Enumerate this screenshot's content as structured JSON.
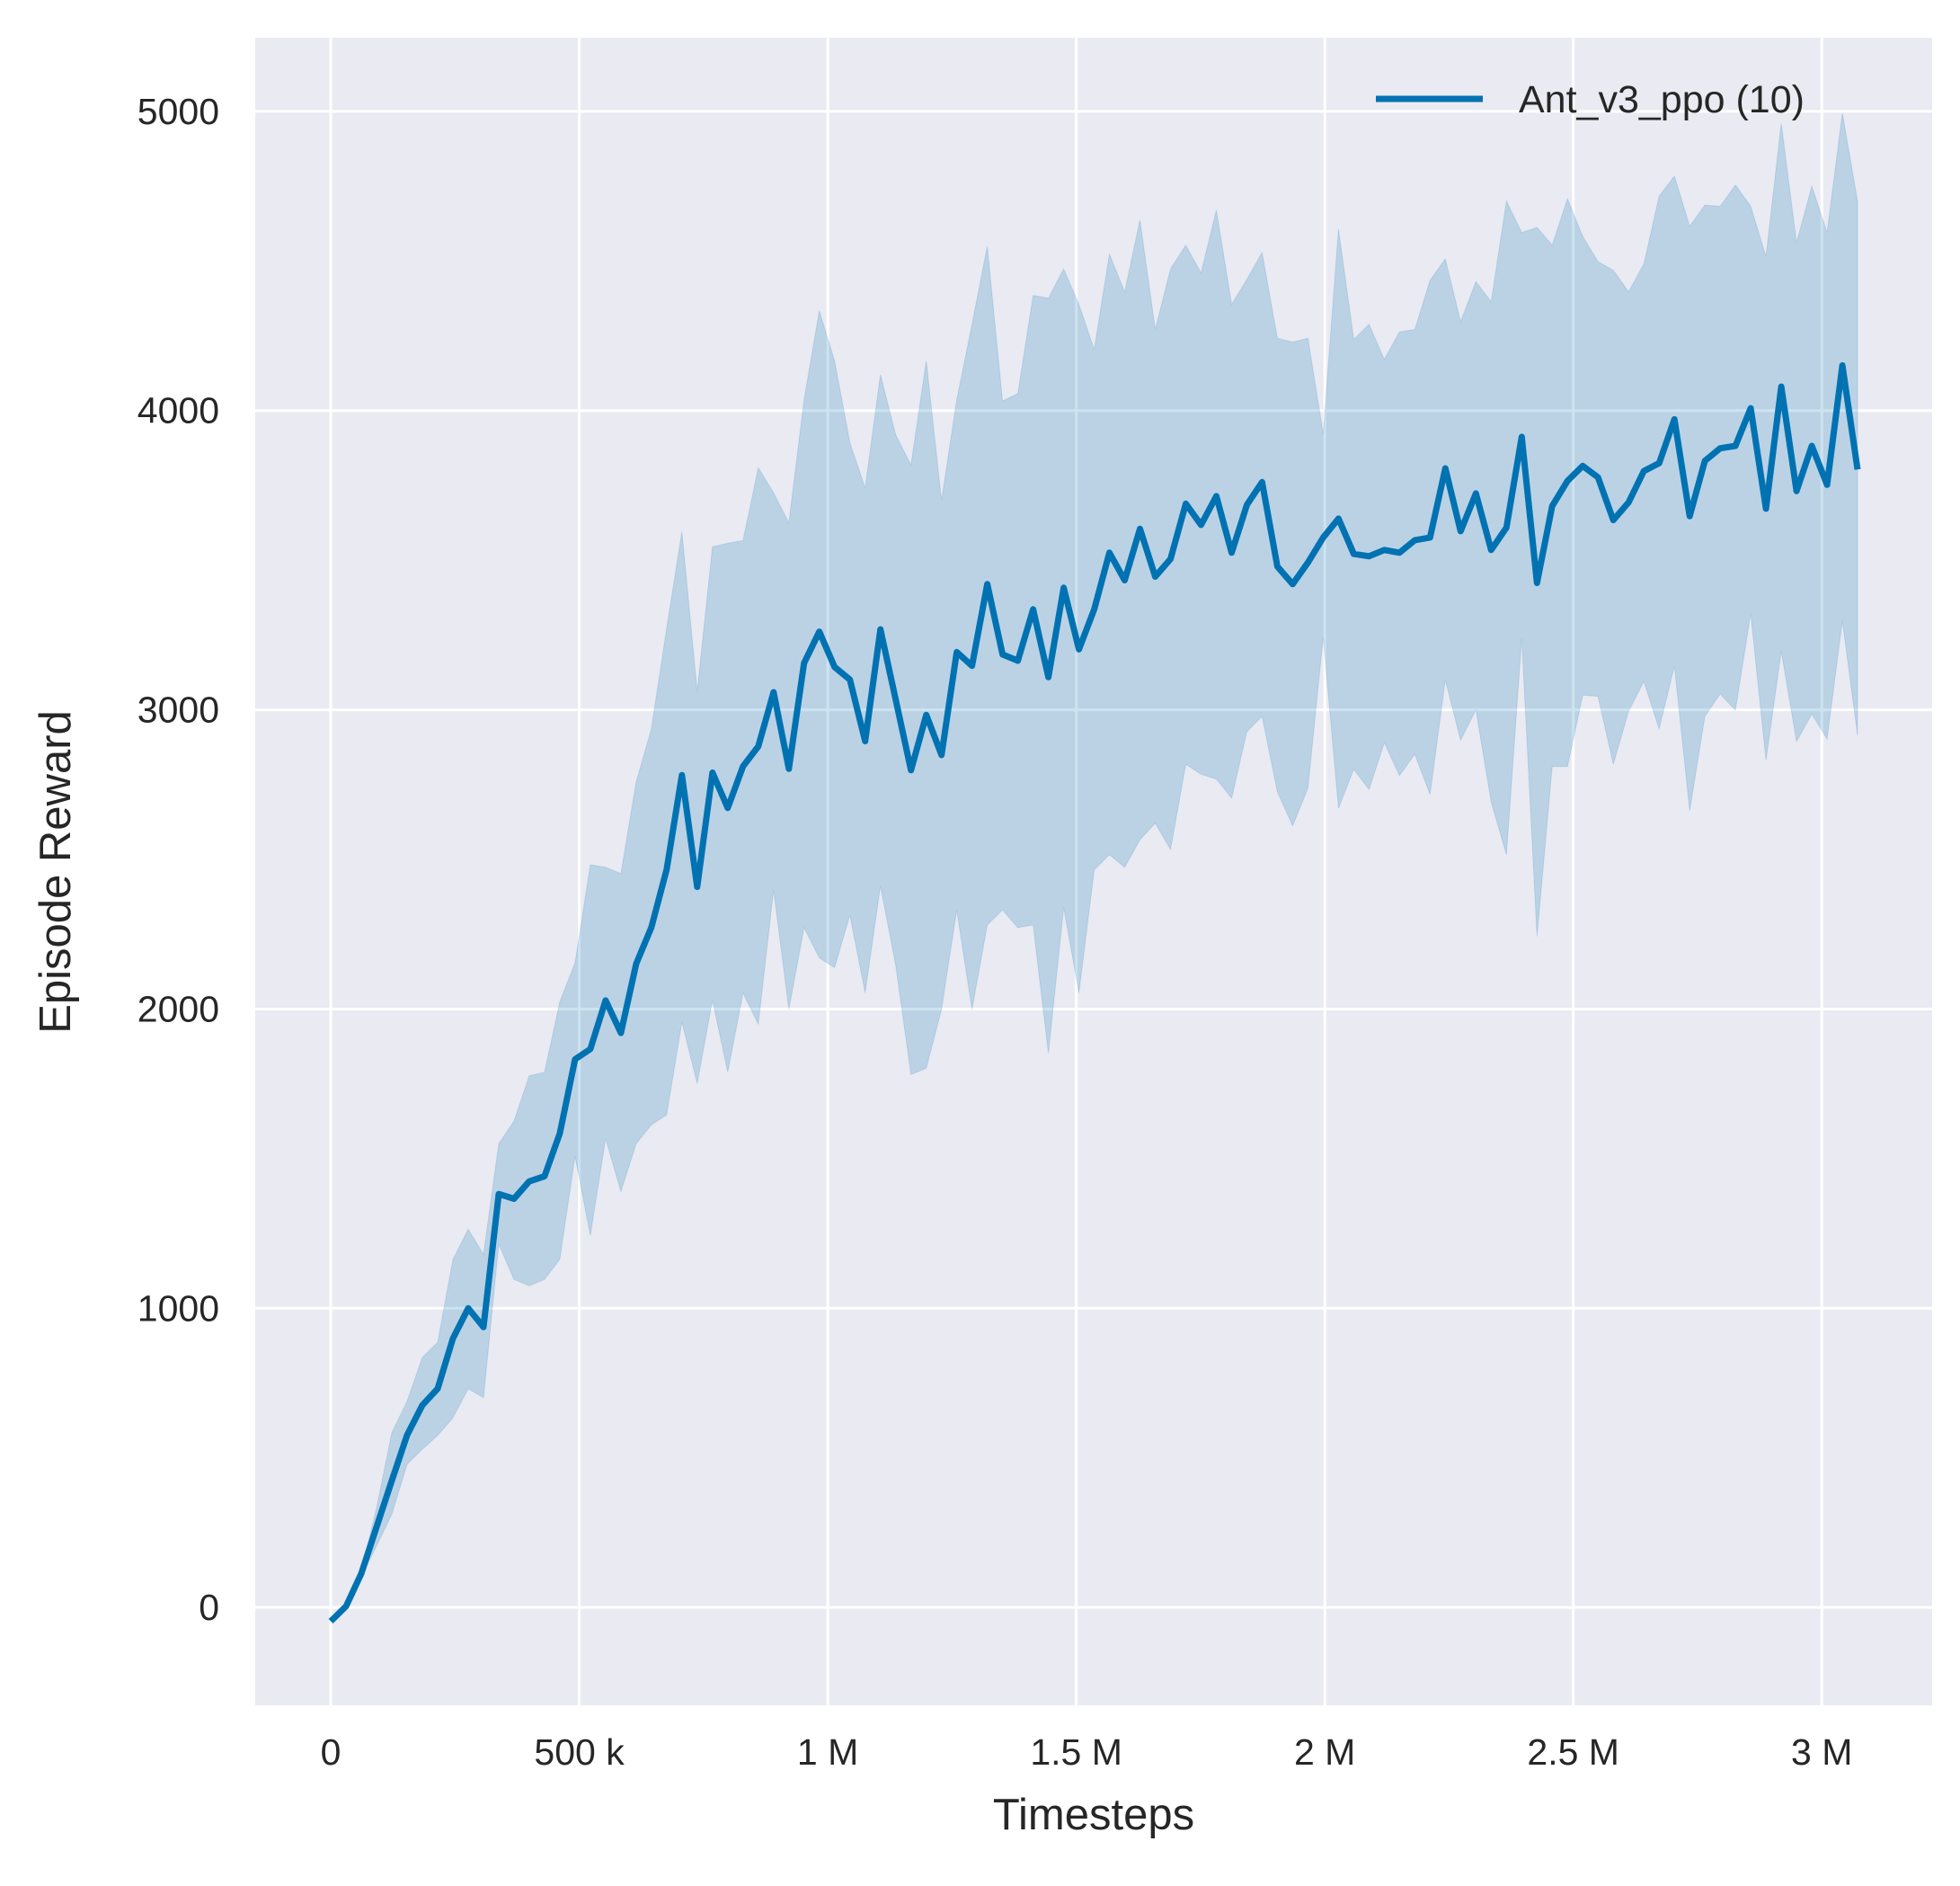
{
  "chart_data": {
    "type": "line",
    "title": "",
    "xlabel": "Timesteps",
    "ylabel": "Episode Reward",
    "xlim": [
      -152000,
      3222000
    ],
    "ylim": [
      -327,
      5246
    ],
    "grid": true,
    "legend_position": "top-right",
    "background_color": "#eaeaf2",
    "grid_color": "#ffffff",
    "x_ticks": [
      0,
      500000,
      1000000,
      1500000,
      2000000,
      2500000,
      3000000
    ],
    "x_tick_labels": [
      "0",
      "500 k",
      "1 M",
      "1.5 M",
      "2 M",
      "2.5 M",
      "3 M"
    ],
    "y_ticks": [
      0,
      1000,
      2000,
      3000,
      4000,
      5000
    ],
    "y_tick_labels": [
      "0",
      "1000",
      "2000",
      "3000",
      "4000",
      "5000"
    ],
    "series": [
      {
        "name": "Ant_v3_ppo (10)",
        "color": "#0072b2",
        "band_color": "#0072b2",
        "x": [
          0,
          30720,
          61440,
          92160,
          122880,
          153600,
          184320,
          215040,
          245760,
          276480,
          307200,
          337920,
          368640,
          399360,
          430080,
          460800,
          491520,
          522240,
          552960,
          583680,
          614400,
          645120,
          675840,
          706560,
          737280,
          768000,
          798720,
          829440,
          860160,
          890880,
          921600,
          952320,
          983040,
          1013760,
          1044480,
          1075200,
          1105920,
          1136640,
          1167360,
          1198080,
          1228800,
          1259520,
          1290240,
          1320960,
          1351680,
          1382400,
          1413120,
          1443840,
          1474560,
          1505280,
          1536000,
          1566720,
          1597440,
          1628160,
          1658880,
          1689600,
          1720320,
          1751040,
          1781760,
          1812480,
          1843200,
          1873920,
          1904640,
          1935360,
          1966080,
          1996800,
          2027520,
          2058240,
          2088960,
          2119680,
          2150400,
          2181120,
          2211840,
          2242560,
          2273280,
          2304000,
          2334720,
          2365440,
          2396160,
          2426880,
          2457600,
          2488320,
          2519040,
          2549760,
          2580480,
          2611200,
          2641920,
          2672640,
          2703360,
          2734080,
          2764800,
          2795520,
          2826240,
          2856960,
          2887680,
          2918400,
          2949120,
          2979840,
          3010560,
          3041280,
          3072000
        ],
        "mean": [
          -46,
          4,
          113,
          269,
          424,
          576,
          676,
          731,
          899,
          1000,
          937,
          1382,
          1366,
          1424,
          1441,
          1584,
          1832,
          1866,
          2029,
          1920,
          2151,
          2273,
          2466,
          2782,
          2408,
          2790,
          2672,
          2811,
          2878,
          3059,
          2803,
          3156,
          3261,
          3143,
          3101,
          2895,
          3269,
          3034,
          2798,
          2983,
          2849,
          3193,
          3147,
          3420,
          3185,
          3164,
          3336,
          3109,
          3408,
          3202,
          3336,
          3525,
          3433,
          3605,
          3445,
          3504,
          3689,
          3618,
          3714,
          3525,
          3685,
          3761,
          3479,
          3420,
          3492,
          3576,
          3639,
          3521,
          3513,
          3534,
          3525,
          3567,
          3576,
          3807,
          3597,
          3723,
          3534,
          3609,
          3912,
          3424,
          3681,
          3765,
          3815,
          3777,
          3634,
          3693,
          3798,
          3824,
          3971,
          3647,
          3832,
          3874,
          3882,
          4008,
          3672,
          4080,
          3731,
          3882,
          3752,
          4151,
          3803
        ],
        "upper": [
          -46,
          4,
          122,
          332,
          584,
          689,
          836,
          886,
          1163,
          1264,
          1180,
          1550,
          1625,
          1777,
          1789,
          2024,
          2155,
          2482,
          2474,
          2453,
          2759,
          2936,
          3272,
          3595,
          3062,
          3545,
          3557,
          3566,
          3809,
          3725,
          3625,
          4036,
          4334,
          4166,
          3893,
          3742,
          4120,
          3919,
          3818,
          4166,
          3700,
          4036,
          4288,
          4549,
          4032,
          4057,
          4385,
          4376,
          4473,
          4355,
          4204,
          4523,
          4397,
          4637,
          4271,
          4473,
          4553,
          4460,
          4670,
          4355,
          4439,
          4528,
          4242,
          4229,
          4242,
          3923,
          4607,
          4238,
          4288,
          4171,
          4263,
          4271,
          4435,
          4507,
          4297,
          4431,
          4364,
          4700,
          4595,
          4612,
          4553,
          4708,
          4582,
          4498,
          4469,
          4397,
          4490,
          4717,
          4784,
          4616,
          4687,
          4683,
          4754,
          4683,
          4515,
          4960,
          4561,
          4750,
          4595,
          4994,
          4700
        ],
        "lower": [
          -46,
          4,
          101,
          206,
          311,
          479,
          529,
          575,
          634,
          731,
          701,
          1214,
          1096,
          1075,
          1096,
          1163,
          1508,
          1243,
          1567,
          1390,
          1550,
          1613,
          1646,
          1957,
          1751,
          2029,
          1789,
          2054,
          1949,
          2398,
          1999,
          2272,
          2171,
          2138,
          2314,
          2054,
          2411,
          2146,
          1781,
          1802,
          1999,
          2331,
          1999,
          2281,
          2331,
          2272,
          2281,
          1852,
          2339,
          2054,
          2465,
          2516,
          2474,
          2566,
          2621,
          2533,
          2818,
          2785,
          2768,
          2705,
          2927,
          2978,
          2726,
          2612,
          2738,
          3242,
          2671,
          2801,
          2734,
          2890,
          2780,
          2852,
          2717,
          3100,
          2898,
          3000,
          2692,
          2516,
          3238,
          2243,
          2810,
          2810,
          3049,
          3045,
          2818,
          2995,
          3095,
          2936,
          3146,
          2663,
          2978,
          3053,
          2999,
          3322,
          2831,
          3196,
          2894,
          2986,
          2902,
          3297,
          2915
        ]
      }
    ]
  }
}
